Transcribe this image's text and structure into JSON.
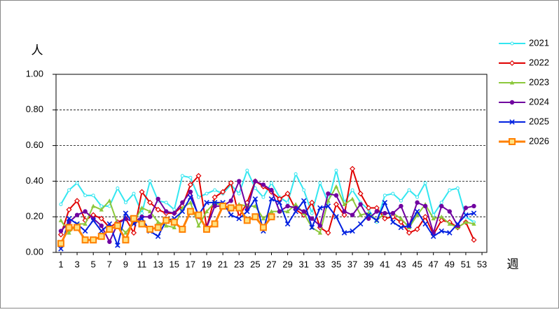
{
  "chart_data": {
    "type": "line",
    "y_label": "人",
    "x_label": "週",
    "x": [
      1,
      2,
      3,
      4,
      5,
      6,
      7,
      8,
      9,
      10,
      11,
      12,
      13,
      14,
      15,
      16,
      17,
      18,
      19,
      20,
      21,
      22,
      23,
      24,
      25,
      26,
      27,
      28,
      29,
      30,
      31,
      32,
      33,
      34,
      35,
      36,
      37,
      38,
      39,
      40,
      41,
      42,
      43,
      44,
      45,
      46,
      47,
      48,
      49,
      50,
      51,
      52,
      53
    ],
    "xlim": [
      0.4,
      53.6
    ],
    "xticks": [
      1,
      3,
      5,
      7,
      9,
      11,
      13,
      15,
      17,
      19,
      21,
      23,
      25,
      27,
      29,
      31,
      33,
      35,
      37,
      39,
      41,
      43,
      45,
      47,
      49,
      51,
      53
    ],
    "ylim": [
      0,
      1
    ],
    "yticks": [
      {
        "value": 0,
        "label": "0.00"
      },
      {
        "value": 0.2,
        "label": "0.20"
      },
      {
        "value": 0.4,
        "label": "0.40"
      },
      {
        "value": 0.6,
        "label": "0.60"
      },
      {
        "value": 0.8,
        "label": "0.80"
      },
      {
        "value": 1,
        "label": "1.00"
      }
    ],
    "grid": "dashed",
    "legend": "right",
    "series": [
      {
        "name": "2021",
        "color": "#33e6f0",
        "marker": "open-circle",
        "values": [
          0.27,
          0.35,
          0.39,
          0.32,
          0.32,
          0.26,
          0.26,
          0.36,
          0.28,
          0.33,
          0.22,
          0.4,
          0.29,
          0.28,
          0.24,
          0.43,
          0.42,
          0.31,
          0.33,
          0.35,
          0.33,
          0.38,
          0.33,
          0.46,
          0.36,
          0.31,
          0.39,
          0.31,
          0.28,
          0.44,
          0.35,
          0.22,
          0.39,
          0.28,
          0.46,
          0.28,
          0.35,
          0.28,
          0.24,
          0.17,
          0.32,
          0.33,
          0.29,
          0.35,
          0.31,
          0.39,
          0.21,
          0.28,
          0.35,
          0.36,
          0.2,
          0.17,
          null
        ]
      },
      {
        "name": "2022",
        "color": "#e00000",
        "marker": "diamond",
        "values": [
          0.1,
          0.24,
          0.29,
          0.18,
          0.21,
          0.19,
          0.14,
          0.17,
          0.19,
          0.11,
          0.34,
          0.28,
          0.24,
          0.22,
          0.22,
          0.26,
          0.38,
          0.43,
          0.14,
          0.31,
          0.34,
          0.39,
          0.2,
          0.28,
          0.4,
          0.37,
          0.34,
          0.3,
          0.33,
          0.24,
          0.21,
          0.28,
          0.14,
          0.11,
          0.27,
          0.21,
          0.47,
          0.33,
          0.25,
          0.25,
          0.19,
          0.2,
          0.17,
          0.11,
          0.13,
          0.2,
          0.1,
          0.18,
          0.17,
          0.14,
          0.17,
          0.07,
          null
        ]
      },
      {
        "name": "2023",
        "color": "#8cc83c",
        "marker": "triangle",
        "values": [
          0.18,
          0.11,
          0.16,
          0.16,
          0.26,
          0.24,
          0.29,
          0.16,
          0.11,
          0.17,
          0.25,
          0.23,
          0.17,
          0.15,
          0.14,
          0.25,
          0.28,
          0.15,
          0.23,
          0.28,
          0.26,
          0.24,
          0.27,
          0.26,
          0.26,
          0.19,
          0.23,
          0.23,
          0.23,
          0.27,
          0.22,
          0.14,
          0.11,
          0.29,
          0.37,
          0.27,
          0.3,
          0.21,
          0.22,
          0.18,
          0.22,
          0.22,
          0.19,
          0.14,
          0.21,
          0.27,
          0.19,
          0.2,
          0.16,
          0.14,
          0.17,
          0.16,
          null
        ]
      },
      {
        "name": "2024",
        "color": "#7000a0",
        "marker": "circle",
        "values": [
          0.12,
          0.17,
          0.21,
          0.23,
          0.19,
          0.15,
          0.06,
          0.16,
          0.19,
          0.17,
          0.2,
          0.2,
          0.3,
          0.23,
          0.22,
          0.28,
          0.34,
          0.2,
          0.14,
          0.26,
          0.26,
          0.29,
          0.4,
          0.24,
          0.4,
          0.38,
          0.35,
          0.23,
          0.26,
          0.25,
          0.23,
          0.19,
          0.15,
          0.33,
          0.32,
          0.23,
          0.21,
          0.27,
          0.19,
          0.23,
          0.22,
          0.22,
          0.26,
          0.15,
          0.28,
          0.26,
          0.11,
          0.26,
          0.23,
          0.15,
          0.25,
          0.26,
          null
        ]
      },
      {
        "name": "2025",
        "color": "#0020e0",
        "marker": "x",
        "values": [
          0.02,
          0.19,
          0.16,
          0.12,
          0.18,
          0.12,
          0.16,
          0.04,
          0.22,
          0.16,
          0.19,
          0.12,
          0.09,
          0.18,
          0.19,
          0.23,
          0.31,
          0.21,
          0.28,
          0.28,
          0.28,
          0.21,
          0.19,
          0.23,
          0.3,
          0.12,
          0.3,
          0.28,
          0.16,
          0.23,
          0.29,
          0.14,
          0.25,
          0.26,
          0.2,
          0.11,
          0.12,
          0.16,
          0.21,
          0.18,
          0.28,
          0.17,
          0.14,
          0.15,
          0.23,
          0.16,
          0.09,
          0.12,
          0.11,
          0.16,
          0.21,
          0.22,
          null
        ]
      },
      {
        "name": "2026",
        "color": "#ff8000",
        "marker": "square",
        "values": [
          0.05,
          0.14,
          0.14,
          0.07,
          0.07,
          0.09,
          0.13,
          0.15,
          0.07,
          0.19,
          0.16,
          0.13,
          0.14,
          0.18,
          0.17,
          0.13,
          0.23,
          0.21,
          0.13,
          0.16,
          0.26,
          0.25,
          0.25,
          0.18,
          0.2,
          0.14,
          0.2,
          null,
          null,
          null,
          null,
          null,
          null,
          null,
          null,
          null,
          null,
          null,
          null,
          null,
          null,
          null,
          null,
          null,
          null,
          null,
          null,
          null,
          null,
          null,
          null,
          null,
          null
        ]
      }
    ]
  }
}
